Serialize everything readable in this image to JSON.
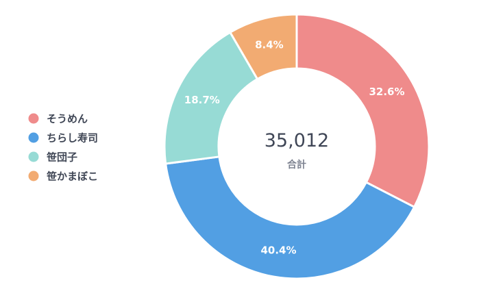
{
  "chart_data": {
    "type": "pie",
    "categories": [
      "そうめん",
      "ちらし寿司",
      "笹団子",
      "笹かまぼこ"
    ],
    "values": [
      32.6,
      40.4,
      18.7,
      8.4
    ],
    "value_labels": [
      "32.6%",
      "40.4%",
      "18.7%",
      "8.4%"
    ],
    "colors": [
      "#ef8b8b",
      "#529fe3",
      "#97dbd5",
      "#f2ab72"
    ],
    "center": {
      "total": "35,012",
      "caption": "合計"
    },
    "legend_position": "left"
  }
}
